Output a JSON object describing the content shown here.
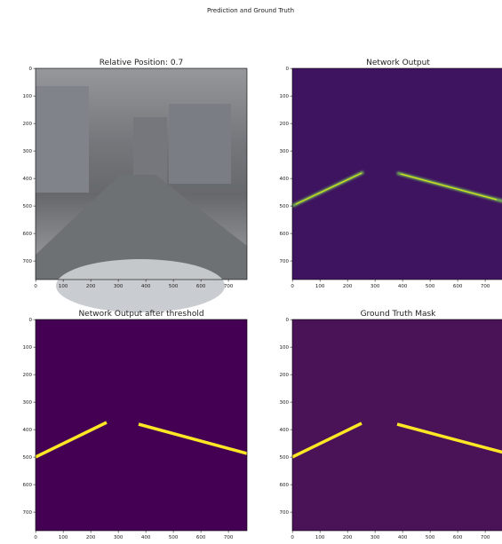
{
  "title": "Prediction and Ground Truth",
  "chart_data": [
    {
      "type": "image",
      "title": "Relative Position: 0.7",
      "xlim": [
        -0.5,
        767.5
      ],
      "ylim": [
        767.5,
        -0.5
      ],
      "xticks": [
        0,
        100,
        200,
        300,
        400,
        500,
        600,
        700
      ],
      "yticks": [
        0,
        100,
        200,
        300,
        400,
        500,
        600,
        700
      ]
    },
    {
      "type": "image",
      "title": "Network Output",
      "xlim": [
        -0.5,
        767.5
      ],
      "ylim": [
        767.5,
        -0.5
      ],
      "xticks": [
        0,
        100,
        200,
        300,
        400,
        500,
        600,
        700
      ],
      "yticks": [
        0,
        100,
        200,
        300,
        400,
        500,
        600,
        700
      ]
    },
    {
      "type": "image",
      "title": "Network Output after threshold",
      "xlim": [
        -0.5,
        767.5
      ],
      "ylim": [
        767.5,
        -0.5
      ],
      "xticks": [
        0,
        100,
        200,
        300,
        400,
        500,
        600,
        700
      ],
      "yticks": [
        0,
        100,
        200,
        300,
        400,
        500,
        600,
        700
      ]
    },
    {
      "type": "image",
      "title": "Ground Truth Mask",
      "xlim": [
        -0.5,
        767.5
      ],
      "ylim": [
        767.5,
        -0.5
      ],
      "xticks": [
        0,
        100,
        200,
        300,
        400,
        500,
        600,
        700
      ],
      "yticks": [
        0,
        100,
        200,
        300,
        400,
        500,
        600,
        700
      ]
    }
  ]
}
